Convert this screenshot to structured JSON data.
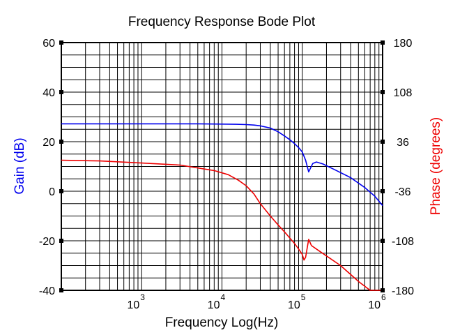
{
  "chart_data": {
    "type": "line",
    "title": "Frequency Response Bode Plot",
    "xlabel": "Frequency Log(Hz)",
    "ylabel_left": "Gain (dB)",
    "ylabel_right": "Phase (degrees)",
    "x_scale": "log",
    "xlim": [
      100,
      1000000
    ],
    "ylim_left": [
      -40,
      60
    ],
    "ylim_right": [
      -180,
      180
    ],
    "x_ticks": [
      {
        "base": "10",
        "exp": "3",
        "value": 1000
      },
      {
        "base": "10",
        "exp": "4",
        "value": 10000
      },
      {
        "base": "10",
        "exp": "5",
        "value": 100000
      },
      {
        "base": "10",
        "exp": "6",
        "value": 1000000
      }
    ],
    "y_left_ticks": [
      "60",
      "40",
      "20",
      "0",
      "-20",
      "-40"
    ],
    "y_left_tick_values": [
      60,
      40,
      20,
      0,
      -20,
      -40
    ],
    "y_right_ticks": [
      "180",
      "108",
      "36",
      "-36",
      "-108",
      "-180"
    ],
    "y_right_tick_values": [
      180,
      108,
      36,
      -36,
      -108,
      -180
    ],
    "grid": true,
    "colors": {
      "gain": "#0000ee",
      "phase": "#ee0000",
      "grid": "#000000"
    },
    "series": [
      {
        "axis": "left",
        "color": "#0000ee",
        "x": [
          100,
          1000,
          5000,
          10000,
          15000,
          20000,
          25000,
          30000,
          40000,
          50000,
          60000,
          70000,
          80000,
          90000,
          100000,
          110000,
          120000,
          135000,
          150000,
          180000,
          250000,
          400000,
          600000,
          800000,
          1000000
        ],
        "values": [
          27.2,
          27.2,
          27.2,
          27.1,
          27.0,
          26.9,
          26.7,
          26.4,
          25.5,
          24.0,
          22.3,
          20.8,
          19.2,
          17.6,
          15.8,
          12.5,
          7.8,
          11.2,
          11.8,
          11.0,
          8.8,
          5.5,
          1.5,
          -2.0,
          -5.8
        ]
      },
      {
        "axis": "right",
        "color": "#ee0000",
        "x": [
          100,
          300,
          1000,
          3000,
          8000,
          12000,
          16000,
          20000,
          25000,
          30000,
          40000,
          50000,
          60000,
          70000,
          80000,
          90000,
          100000,
          105000,
          110000,
          120000,
          130000,
          150000,
          200000,
          300000,
          500000,
          700000,
          1000000
        ],
        "values": [
          9,
          8,
          5,
          2,
          -6,
          -12,
          -20,
          -28,
          -40,
          -54,
          -72,
          -85,
          -95,
          -104,
          -112,
          -120,
          -128,
          -136,
          -132,
          -106,
          -115,
          -120,
          -130,
          -144,
          -167,
          -186,
          -205
        ]
      }
    ]
  }
}
